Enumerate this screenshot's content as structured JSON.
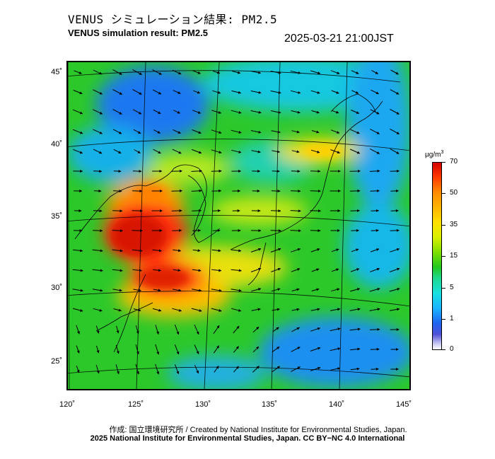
{
  "title_jp": "VENUS シミュレーション結果: PM2.5",
  "title_en": "VENUS simulation result: PM2.5",
  "timestamp": "2025-03-21 21:00JST",
  "map": {
    "latitude_labels": [
      "45˚",
      "40˚",
      "35˚",
      "30˚",
      "25˚"
    ],
    "longitude_labels": [
      "120˚",
      "125˚",
      "130˚",
      "135˚",
      "140˚",
      "145˚"
    ],
    "background_color": "#28c828",
    "high_color": "#e02000",
    "sea_low_color": "#1e96f0"
  },
  "colorbar": {
    "unit": "μg/m",
    "unit_sup": "3",
    "tick_labels": [
      "70",
      "50",
      "35",
      "15",
      "5",
      "1",
      "0"
    ]
  },
  "credit_line1": "作成: 国立環境研究所 / Created by National Institute for Environmental Studies, Japan.",
  "credit_line2": "2025 National Institute for Environmental Studies, Japan. CC BY−NC 4.0 International"
}
